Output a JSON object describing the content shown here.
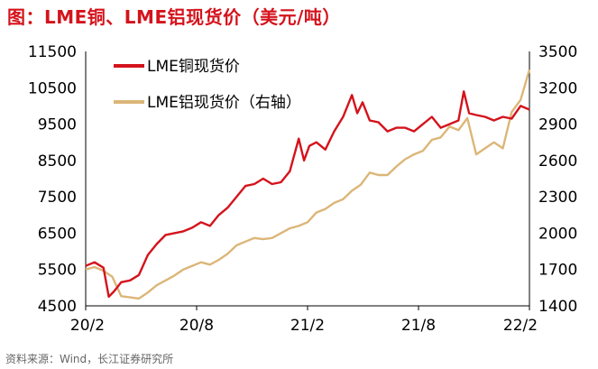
{
  "title": "图：LME铜、LME铝现货价（美元/吨）",
  "source": "资料来源：Wind，长江证券研究所",
  "colors": {
    "copper": "#d4131c",
    "aluminum": "#dcb678",
    "title": "#d4131c"
  },
  "chart_data": {
    "type": "line",
    "title": "图：LME铜、LME铝现货价（美元/吨）",
    "x_ticks": [
      "20/2",
      "20/8",
      "21/2",
      "21/8",
      "22/2"
    ],
    "left_axis": {
      "ylim": [
        4500,
        11500
      ],
      "ticks": [
        "11500",
        "10500",
        "9500",
        "8500",
        "7500",
        "6500",
        "5500",
        "4500"
      ]
    },
    "right_axis": {
      "ylim": [
        1400,
        3500
      ],
      "ticks": [
        "3500",
        "3200",
        "2900",
        "2600",
        "2300",
        "2000",
        "1700",
        "1400"
      ]
    },
    "legend": [
      "LME铜现货价",
      "LME铝现货价（右轴）"
    ],
    "x_range_months": [
      0,
      25
    ],
    "series": [
      {
        "name": "LME铜现货价",
        "axis": "left",
        "color": "#d4131c",
        "x": [
          0,
          0.5,
          1,
          1.3,
          1.6,
          2,
          2.5,
          3,
          3.5,
          4,
          4.5,
          5,
          5.5,
          6,
          6.5,
          7,
          7.5,
          8,
          8.5,
          9,
          9.5,
          10,
          10.5,
          11,
          11.5,
          12,
          12.3,
          12.6,
          13,
          13.5,
          14,
          14.5,
          15,
          15.3,
          15.6,
          16,
          16.5,
          17,
          17.5,
          18,
          18.5,
          19,
          19.5,
          20,
          20.5,
          21,
          21.3,
          21.6,
          22,
          22.5,
          23,
          23.5,
          24,
          24.5,
          25
        ],
        "values": [
          5600,
          5700,
          5550,
          4750,
          4900,
          5150,
          5200,
          5350,
          5900,
          6200,
          6450,
          6500,
          6550,
          6650,
          6800,
          6700,
          7000,
          7200,
          7500,
          7800,
          7850,
          8000,
          7850,
          7900,
          8200,
          9100,
          8500,
          8900,
          9000,
          8800,
          9300,
          9700,
          10300,
          9800,
          10100,
          9600,
          9550,
          9300,
          9400,
          9400,
          9300,
          9500,
          9700,
          9400,
          9500,
          9600,
          10400,
          9800,
          9750,
          9700,
          9600,
          9700,
          9650,
          10000,
          9900
        ]
      },
      {
        "name": "LME铝现货价（右轴）",
        "axis": "right",
        "color": "#dcb678",
        "x": [
          0,
          0.5,
          1,
          1.5,
          2,
          2.5,
          3,
          3.5,
          4,
          4.5,
          5,
          5.5,
          6,
          6.5,
          7,
          7.5,
          8,
          8.5,
          9,
          9.5,
          10,
          10.5,
          11,
          11.5,
          12,
          12.5,
          13,
          13.5,
          14,
          14.5,
          15,
          15.5,
          16,
          16.5,
          17,
          17.5,
          18,
          18.5,
          19,
          19.5,
          20,
          20.5,
          21,
          21.5,
          22,
          22.5,
          23,
          23.5,
          24,
          24.5,
          25
        ],
        "values": [
          1700,
          1720,
          1690,
          1640,
          1480,
          1470,
          1460,
          1510,
          1570,
          1610,
          1650,
          1700,
          1730,
          1760,
          1740,
          1780,
          1830,
          1900,
          1930,
          1960,
          1950,
          1960,
          2000,
          2040,
          2060,
          2090,
          2170,
          2200,
          2250,
          2280,
          2350,
          2400,
          2500,
          2480,
          2480,
          2550,
          2610,
          2650,
          2680,
          2770,
          2790,
          2880,
          2850,
          2950,
          2650,
          2700,
          2750,
          2700,
          3000,
          3100,
          3350
        ]
      }
    ]
  }
}
